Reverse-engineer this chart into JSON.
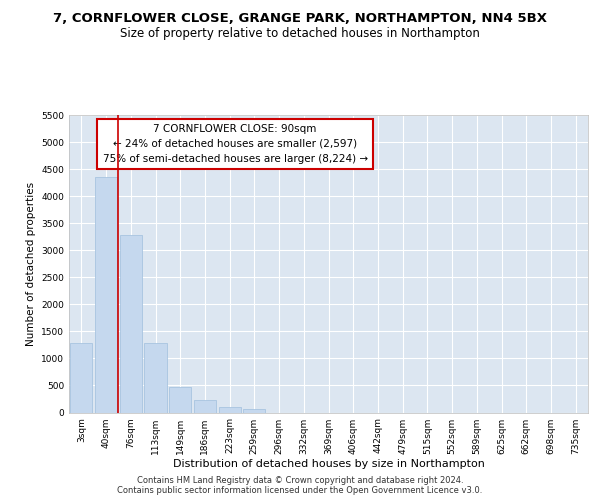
{
  "title1": "7, CORNFLOWER CLOSE, GRANGE PARK, NORTHAMPTON, NN4 5BX",
  "title2": "Size of property relative to detached houses in Northampton",
  "xlabel": "Distribution of detached houses by size in Northampton",
  "ylabel": "Number of detached properties",
  "categories": [
    "3sqm",
    "40sqm",
    "76sqm",
    "113sqm",
    "149sqm",
    "186sqm",
    "223sqm",
    "259sqm",
    "296sqm",
    "332sqm",
    "369sqm",
    "406sqm",
    "442sqm",
    "479sqm",
    "515sqm",
    "552sqm",
    "589sqm",
    "625sqm",
    "662sqm",
    "698sqm",
    "735sqm"
  ],
  "values": [
    1280,
    4350,
    3280,
    1280,
    480,
    240,
    100,
    60,
    0,
    0,
    0,
    0,
    0,
    0,
    0,
    0,
    0,
    0,
    0,
    0,
    0
  ],
  "bar_color": "#c5d8ee",
  "bar_edge_color": "#a8c4e0",
  "vline_x": 1.5,
  "vline_color": "#cc0000",
  "annotation_text": "7 CORNFLOWER CLOSE: 90sqm\n← 24% of detached houses are smaller (2,597)\n75% of semi-detached houses are larger (8,224) →",
  "annotation_box_color": "#ffffff",
  "annotation_edge_color": "#cc0000",
  "ylim": [
    0,
    5500
  ],
  "yticks": [
    0,
    500,
    1000,
    1500,
    2000,
    2500,
    3000,
    3500,
    4000,
    4500,
    5000,
    5500
  ],
  "background_color": "#dce6f1",
  "footer_text": "Contains HM Land Registry data © Crown copyright and database right 2024.\nContains public sector information licensed under the Open Government Licence v3.0.",
  "title1_fontsize": 9.5,
  "title2_fontsize": 8.5,
  "ylabel_fontsize": 7.5,
  "xlabel_fontsize": 8,
  "tick_fontsize": 6.5,
  "annotation_fontsize": 7.5,
  "footer_fontsize": 6
}
